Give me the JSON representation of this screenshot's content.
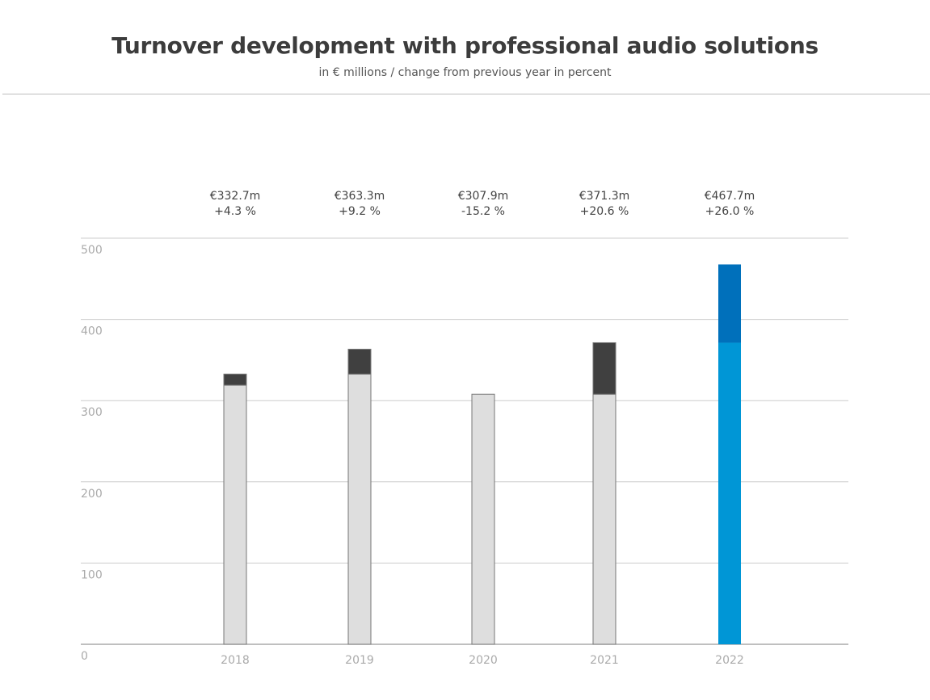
{
  "chart_data": {
    "type": "bar",
    "stacked_change": true,
    "title": "Turnover development with professional audio solutions",
    "subtitle": "in € millions / change from previous year in percent",
    "categories": [
      "2018",
      "2019",
      "2020",
      "2021",
      "2022"
    ],
    "values": [
      332.7,
      363.3,
      307.9,
      371.3,
      467.7
    ],
    "previous_year_values": [
      319.0,
      332.7,
      363.3,
      307.9,
      371.3
    ],
    "value_labels": [
      "€332.7m",
      "€363.3m",
      "€307.9m",
      "€371.3m",
      "€467.7m"
    ],
    "change_labels": [
      "+4.3 %",
      "+9.2 %",
      "-15.2 %",
      "+20.6 %",
      "+26.0 %"
    ],
    "ylim": [
      0,
      500
    ],
    "yticks": [
      "0",
      "100",
      "200",
      "300",
      "400",
      "500"
    ],
    "grid": true,
    "colors": {
      "base": "#dedede",
      "increase": "#404040",
      "highlight_base": "#0096d6",
      "highlight_increase": "#0070bb",
      "grid": "#cccccc"
    }
  }
}
